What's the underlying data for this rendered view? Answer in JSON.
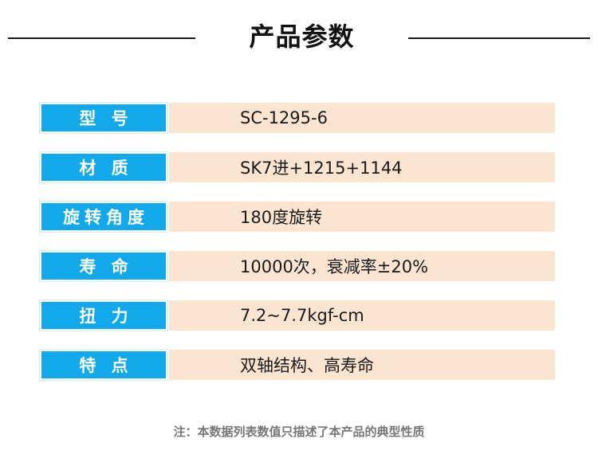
{
  "header": {
    "title": "产品参数"
  },
  "specs": [
    {
      "label": "型 号",
      "value": "SC-1295-6"
    },
    {
      "label": "材 质",
      "value": "SK7进+1215+1144"
    },
    {
      "label": "旋转角度",
      "value": "180度旋转"
    },
    {
      "label": "寿 命",
      "value": "10000次，衰减率±20%"
    },
    {
      "label": "扭 力",
      "value": "7.2~7.7kgf-cm"
    },
    {
      "label": "特 点",
      "value": "双轴结构、高寿命"
    }
  ],
  "footer": {
    "note": "注：本数据列表数值只描述了本产品的典型性质"
  },
  "colors": {
    "label_bg": "#12a8ec",
    "value_bg": "#fbe5d0"
  }
}
